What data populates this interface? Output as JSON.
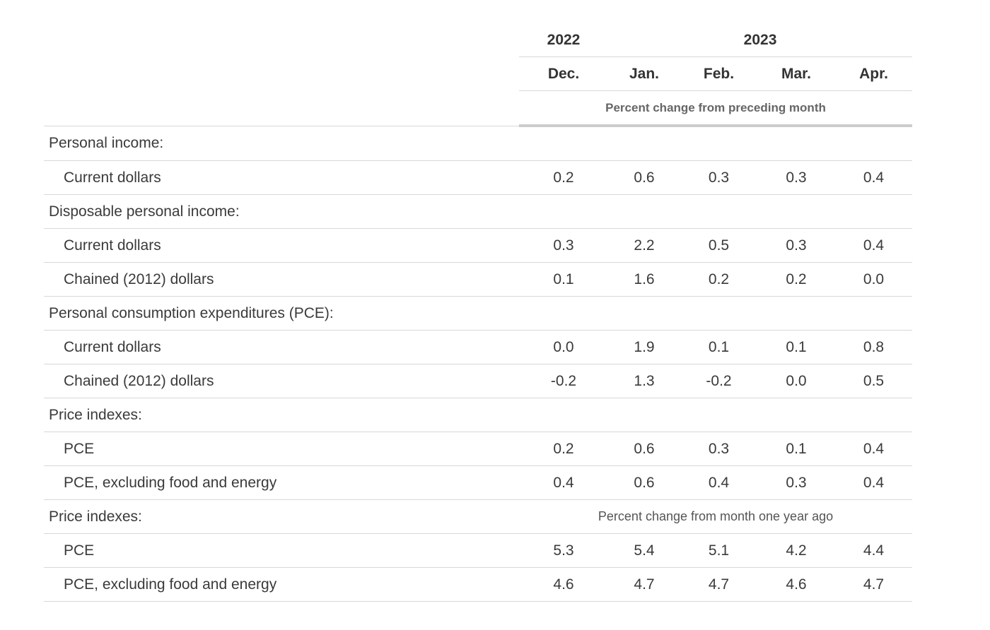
{
  "table": {
    "years": [
      "2022",
      "2023"
    ],
    "months": [
      "Dec.",
      "Jan.",
      "Feb.",
      "Mar.",
      "Apr."
    ],
    "subheader": "Percent change from preceding month",
    "sections": [
      {
        "label": "Personal income:",
        "rows": [
          {
            "label": "Current dollars",
            "values": [
              "0.2",
              "0.6",
              "0.3",
              "0.3",
              "0.4"
            ]
          }
        ]
      },
      {
        "label": "Disposable personal income:",
        "rows": [
          {
            "label": "Current dollars",
            "values": [
              "0.3",
              "2.2",
              "0.5",
              "0.3",
              "0.4"
            ]
          },
          {
            "label": "Chained (2012) dollars",
            "values": [
              "0.1",
              "1.6",
              "0.2",
              "0.2",
              "0.0"
            ]
          }
        ]
      },
      {
        "label": "Personal consumption expenditures (PCE):",
        "rows": [
          {
            "label": "Current dollars",
            "values": [
              "0.0",
              "1.9",
              "0.1",
              "0.1",
              "0.8"
            ]
          },
          {
            "label": "Chained (2012) dollars",
            "values": [
              "-0.2",
              "1.3",
              "-0.2",
              "0.0",
              "0.5"
            ]
          }
        ]
      },
      {
        "label": "Price indexes:",
        "rows": [
          {
            "label": "PCE",
            "values": [
              "0.2",
              "0.6",
              "0.3",
              "0.1",
              "0.4"
            ]
          },
          {
            "label": "PCE, excluding food and energy",
            "values": [
              "0.4",
              "0.6",
              "0.4",
              "0.3",
              "0.4"
            ]
          }
        ]
      },
      {
        "label": "Price indexes:",
        "note": "Percent change from month one year ago",
        "rows": [
          {
            "label": "PCE",
            "values": [
              "5.3",
              "5.4",
              "5.1",
              "4.2",
              "4.4"
            ]
          },
          {
            "label": "PCE, excluding food and energy",
            "values": [
              "4.6",
              "4.7",
              "4.7",
              "4.6",
              "4.7"
            ]
          }
        ]
      }
    ]
  }
}
